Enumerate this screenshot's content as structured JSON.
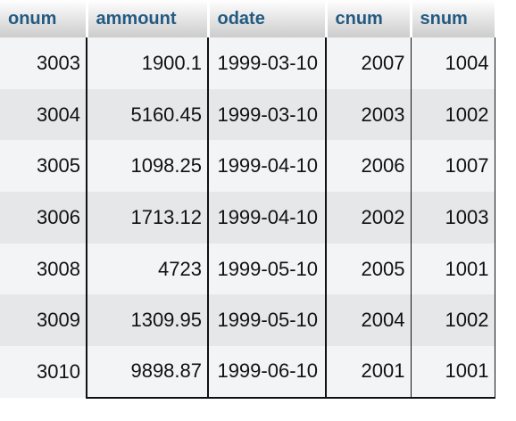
{
  "table": {
    "columns": [
      "onum",
      "ammount",
      "odate",
      "cnum",
      "snum"
    ],
    "rows": [
      [
        "3003",
        "1900.1",
        "1999-03-10",
        "2007",
        "1004"
      ],
      [
        "3004",
        "5160.45",
        "1999-03-10",
        "2003",
        "1002"
      ],
      [
        "3005",
        "1098.25",
        "1999-04-10",
        "2006",
        "1007"
      ],
      [
        "3006",
        "1713.12",
        "1999-04-10",
        "2002",
        "1003"
      ],
      [
        "3008",
        "4723",
        "1999-05-10",
        "2005",
        "1001"
      ],
      [
        "3009",
        "1309.95",
        "1999-05-10",
        "2004",
        "1002"
      ],
      [
        "3010",
        "9898.87",
        "1999-06-10",
        "2001",
        "1001"
      ]
    ]
  },
  "colors": {
    "header_text": "#235a81",
    "row_odd": "#f3f4f6",
    "row_even": "#e6e7e9"
  }
}
